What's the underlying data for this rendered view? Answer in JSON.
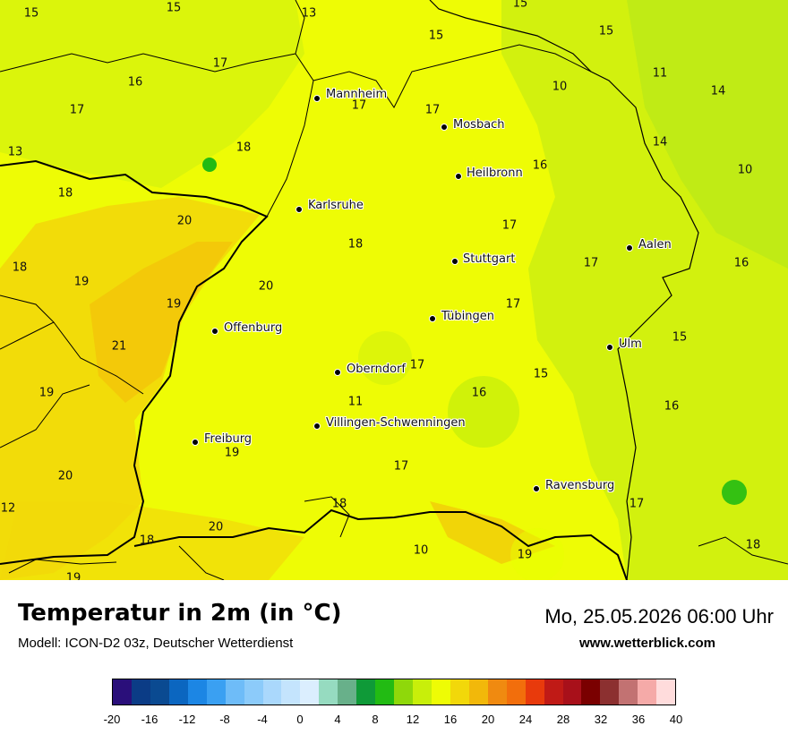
{
  "title": "Temperatur in 2m (in °C)",
  "subtitle": "Modell: ICON-D2 03z, Deutscher Wetterdienst",
  "datetime": "Mo, 25.05.2026 06:00 Uhr",
  "website": "www.wetterblick.com",
  "cities": [
    {
      "name": "Mannheim"
    },
    {
      "name": "Mosbach"
    },
    {
      "name": "Heilbronn"
    },
    {
      "name": "Karlsruhe"
    },
    {
      "name": "Stuttgart"
    },
    {
      "name": "Aalen"
    },
    {
      "name": "Tübingen"
    },
    {
      "name": "Offenburg"
    },
    {
      "name": "Ulm"
    },
    {
      "name": "Oberndorf"
    },
    {
      "name": "Villingen-Schwenningen"
    },
    {
      "name": "Freiburg"
    },
    {
      "name": "Ravensburg"
    }
  ],
  "values": [
    "15",
    "15",
    "13",
    "15",
    "15",
    "15",
    "17",
    "16",
    "17",
    "17",
    "10",
    "11",
    "14",
    "17",
    "18",
    "14",
    "13",
    "18",
    "16",
    "10",
    "20",
    "18",
    "17",
    "18",
    "19",
    "17",
    "16",
    "20",
    "19",
    "17",
    "21",
    "15",
    "19",
    "17",
    "16",
    "15",
    "11",
    "16",
    "19",
    "17",
    "20",
    "12",
    "18",
    "17",
    "20",
    "18",
    "10",
    "19",
    "18",
    "19"
  ],
  "legend": {
    "colors": [
      "#2a0f7a",
      "#0b3c86",
      "#0a4a91",
      "#0b66c0",
      "#1c86e4",
      "#3aa0f2",
      "#6ebcf8",
      "#8ccbfa",
      "#aad8fc",
      "#c4e4fd",
      "#dbeefe",
      "#96dbc0",
      "#68b08a",
      "#0f9a38",
      "#22bb13",
      "#8fd80a",
      "#c8ef0a",
      "#eefc05",
      "#f2d80a",
      "#f2b80a",
      "#f08a10",
      "#f26e0c",
      "#e83a0c",
      "#c01a16",
      "#a8101a",
      "#7a0000",
      "#8c3030",
      "#c27272",
      "#f5aaa8",
      "#ffdcdc"
    ],
    "ticks": [
      "-20",
      "-16",
      "-12",
      "-8",
      "-4",
      "0",
      "4",
      "8",
      "12",
      "16",
      "20",
      "24",
      "28",
      "32",
      "36",
      "40"
    ]
  }
}
